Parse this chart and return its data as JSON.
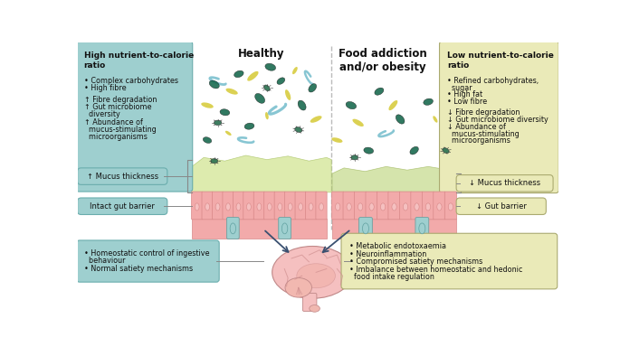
{
  "bg_color": "#ffffff",
  "teal_box_color": "#9ecfcf",
  "yellow_box_color": "#eaeab8",
  "mucus_healthy_color": "#d8e8a0",
  "mucus_obese_color": "#c8dc90",
  "cell_body_color": "#f2aaaa",
  "cell_oval_color": "#f5c0c0",
  "cell_teal_color": "#9ecfcf",
  "villi_edge_color": "#d88888",
  "brain_color": "#f5c0c0",
  "brain_inner_color": "#f0b0b0",
  "arrow_color": "#3a5070",
  "dashed_color": "#aaaaaa",
  "connector_color": "#888888",
  "bact_dark_green": "#1a6b50",
  "bact_yellow": "#d4c840",
  "bact_teal": "#5ab0b0",
  "bact_olive": "#2a5a38",
  "left_box_title": "High nutrient-to-calorie\nratio",
  "left_box_line1": "• Complex carbohydrates",
  "left_box_line2": "• High fibre",
  "left_box_line3": "↑ Fibre degradation",
  "left_box_line4": "↑ Gut microbiome",
  "left_box_line4b": "  diversity",
  "left_box_line5": "↑ Abundance of",
  "left_box_line5b": "  mucus-stimulating",
  "left_box_line5c": "  microorganisms",
  "right_box_title": "Low nutrient-to-calorie\nratio",
  "right_box_line1": "• Refined carbohydrates,",
  "right_box_line1b": "  sugar",
  "right_box_line2": "• High fat",
  "right_box_line3": "• Low fibre",
  "right_box_line4": "↓ Fibre degradation",
  "right_box_line5": "↓ Gut microbiome diversity",
  "right_box_line6": "↓ Abundance of",
  "right_box_line6b": "  mucus-stimulating",
  "right_box_line6c": "  microorganisms",
  "healthy_label": "Healthy",
  "obese_label": "Food addiction\nand/or obesity",
  "mucus_thick_label": "↑ Mucus thickness",
  "mucus_thin_label": "↓ Mucus thickness",
  "gut_intact_label": "Intact gut barrier",
  "gut_barrier_label": "↓ Gut barrier",
  "bottom_left_line1": "• Homeostatic control of ingestive",
  "bottom_left_line2": "  behaviour",
  "bottom_left_line3": "• Normal satiety mechanisms",
  "bottom_right_line1": "• Metabolic endotoxaemia",
  "bottom_right_line2": "• Neuroinflammation",
  "bottom_right_line3": "• Compromised satiety mechanisms",
  "bottom_right_line4": "• Imbalance between homeostatic and hedonic",
  "bottom_right_line5": "  food intake regulation"
}
